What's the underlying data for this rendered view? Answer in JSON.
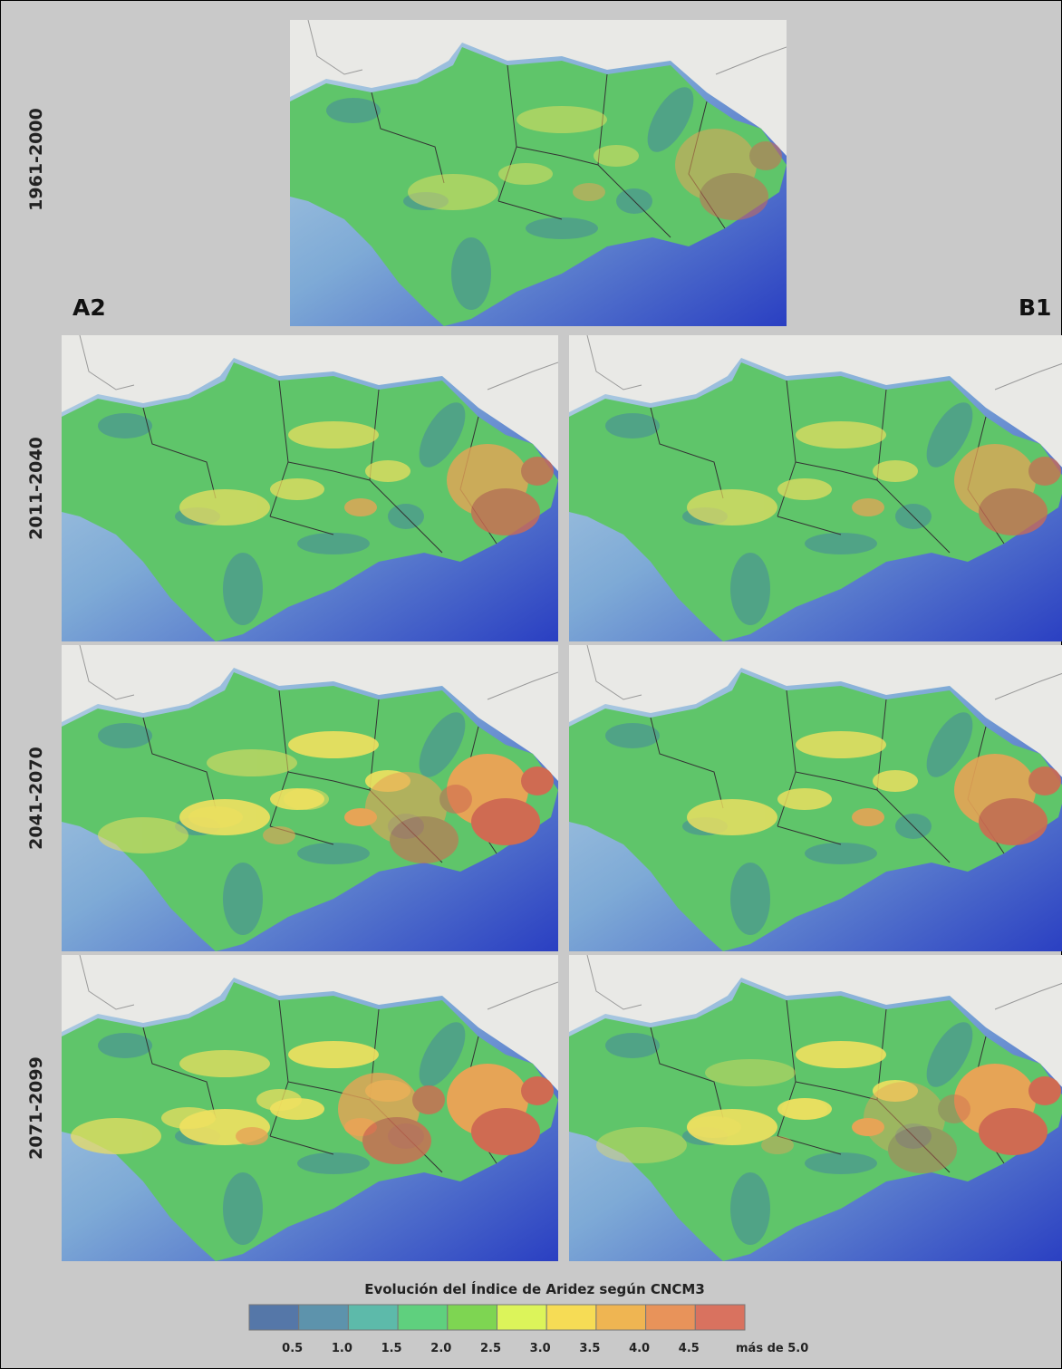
{
  "panels": {
    "baseline": "1961-2000",
    "scenarios": [
      "A2",
      "B1"
    ],
    "periods": [
      "2011-2040",
      "2041-2070",
      "2071-2099"
    ]
  },
  "legend": {
    "title": "Evolución del Índice de Aridez según CNCM3",
    "labels": [
      "0.5",
      "1.0",
      "1.5",
      "2.0",
      "2.5",
      "3.0",
      "3.5",
      "4.0",
      "4.5",
      "más de 5.0"
    ],
    "colors": [
      "#5577a8",
      "#5d93ac",
      "#5dbaaa",
      "#5fd07e",
      "#7ed552",
      "#dcf45a",
      "#f6dc55",
      "#efb552",
      "#e8935a",
      "#d9725f"
    ]
  }
}
